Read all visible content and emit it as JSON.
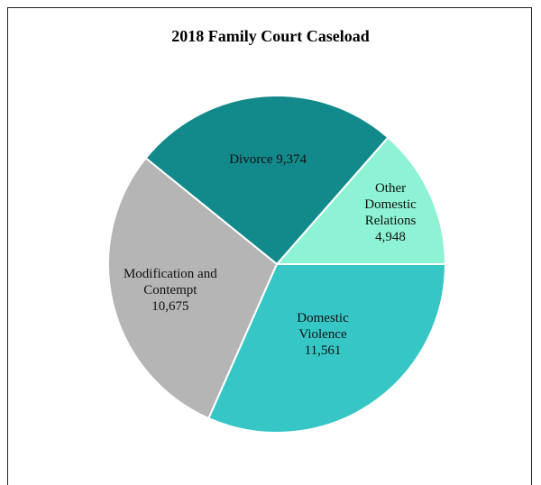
{
  "chart_data": {
    "type": "pie",
    "title": "2018 Family Court  Caseload",
    "categories": [
      "Other Domestic Relations",
      "Divorce",
      "Modification and Contempt",
      "Domestic Violence"
    ],
    "values": [
      4948,
      9374,
      10675,
      11561
    ],
    "value_labels": [
      "4,948",
      "9,374",
      "10,675",
      "11,561"
    ],
    "colors": [
      "#8ef3d4",
      "#12898b",
      "#b5b5b5",
      "#37c6c6"
    ]
  }
}
